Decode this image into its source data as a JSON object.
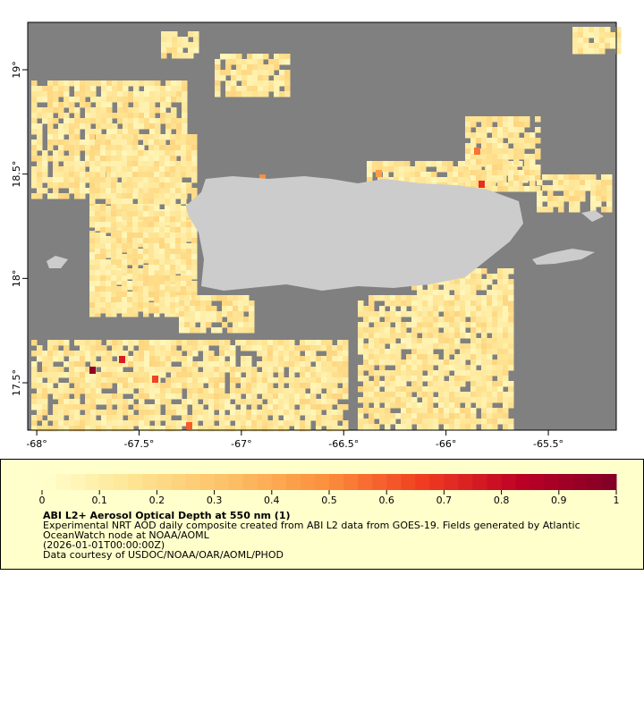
{
  "map": {
    "xlim": [
      -68.044,
      -65.168
    ],
    "ylim": [
      17.273,
      19.227
    ],
    "xticks": [
      {
        "value": -68,
        "label": "-68°"
      },
      {
        "value": -67.5,
        "label": "-67.5°"
      },
      {
        "value": -67,
        "label": "-67°"
      },
      {
        "value": -66.5,
        "label": "-66.5°"
      },
      {
        "value": -66,
        "label": "-66°"
      },
      {
        "value": -65.5,
        "label": "-65.5°"
      }
    ],
    "yticks": [
      {
        "value": 17.5,
        "label": "17.5°"
      },
      {
        "value": 18,
        "label": "18°"
      },
      {
        "value": 18.5,
        "label": "18.5°"
      },
      {
        "value": 19,
        "label": "19°"
      }
    ]
  },
  "colorbar": {
    "lim": [
      0,
      1
    ],
    "ticks": [
      0,
      0.1,
      0.2,
      0.3,
      0.4,
      0.5,
      0.6,
      0.7,
      0.8,
      0.9,
      1
    ]
  },
  "legend": {
    "title": "ABI L2+ Aerosol Optical Depth at 550 nm (1)",
    "lines": [
      "Experimental NRT AOD daily composite created from ABI L2 data from GOES-19. Fields generated by Atlantic",
      "OceanWatch node at NOAA/AOML",
      "(2026-01-01T00:00:00Z)",
      "Data courtesy of USDOC/NOAA/OAR/AOML/PHOD"
    ]
  }
}
